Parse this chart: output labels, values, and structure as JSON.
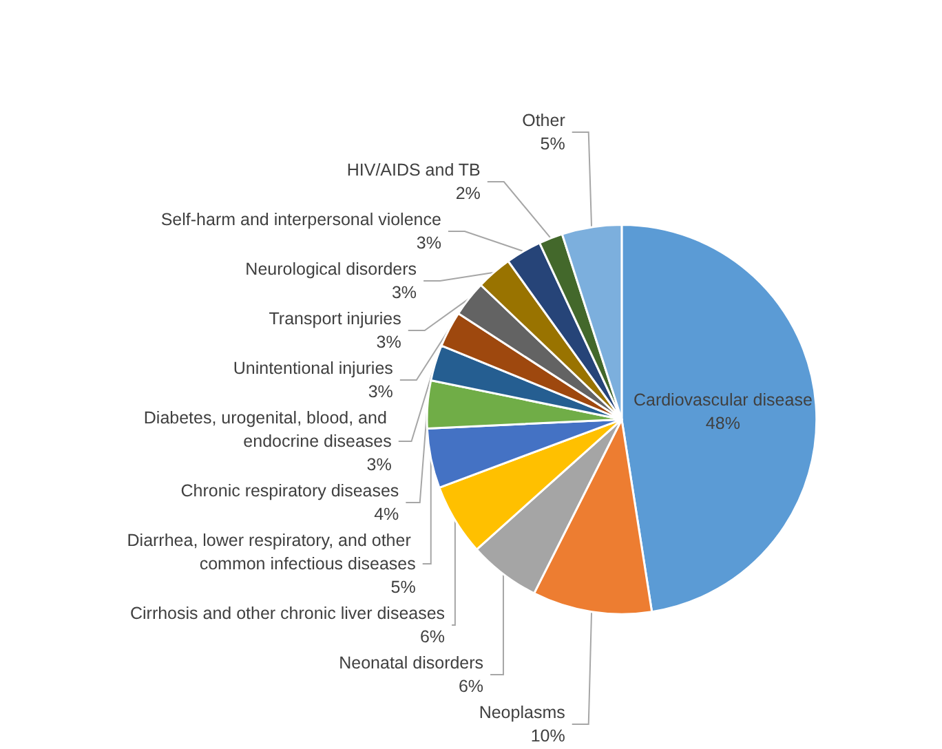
{
  "chart_data": {
    "type": "pie",
    "categories": [
      "Cardiovascular disease",
      "Neoplasms",
      "Neonatal disorders",
      "Cirrhosis and other chronic liver diseases",
      "Diarrhea, lower respiratory, and other common infectious diseases",
      "Chronic respiratory diseases",
      "Diabetes, urogenital, blood, and endocrine diseases",
      "Unintentional injuries",
      "Transport injuries",
      "Neurological disorders",
      "Self-harm and interpersonal violence",
      "HIV/AIDS and TB",
      "Other"
    ],
    "values": [
      48,
      10,
      6,
      6,
      5,
      4,
      3,
      3,
      3,
      3,
      3,
      2,
      5
    ],
    "value_labels": [
      "48%",
      "10%",
      "6%",
      "6%",
      "5%",
      "4%",
      "3%",
      "3%",
      "3%",
      "3%",
      "3%",
      "2%",
      "5%"
    ],
    "colors": [
      "#5b9bd5",
      "#ed7d31",
      "#a5a5a5",
      "#ffc000",
      "#4472c4",
      "#70ad47",
      "#255e91",
      "#9e480e",
      "#636363",
      "#997300",
      "#264478",
      "#43682b",
      "#7cafdd"
    ],
    "legend": false
  }
}
